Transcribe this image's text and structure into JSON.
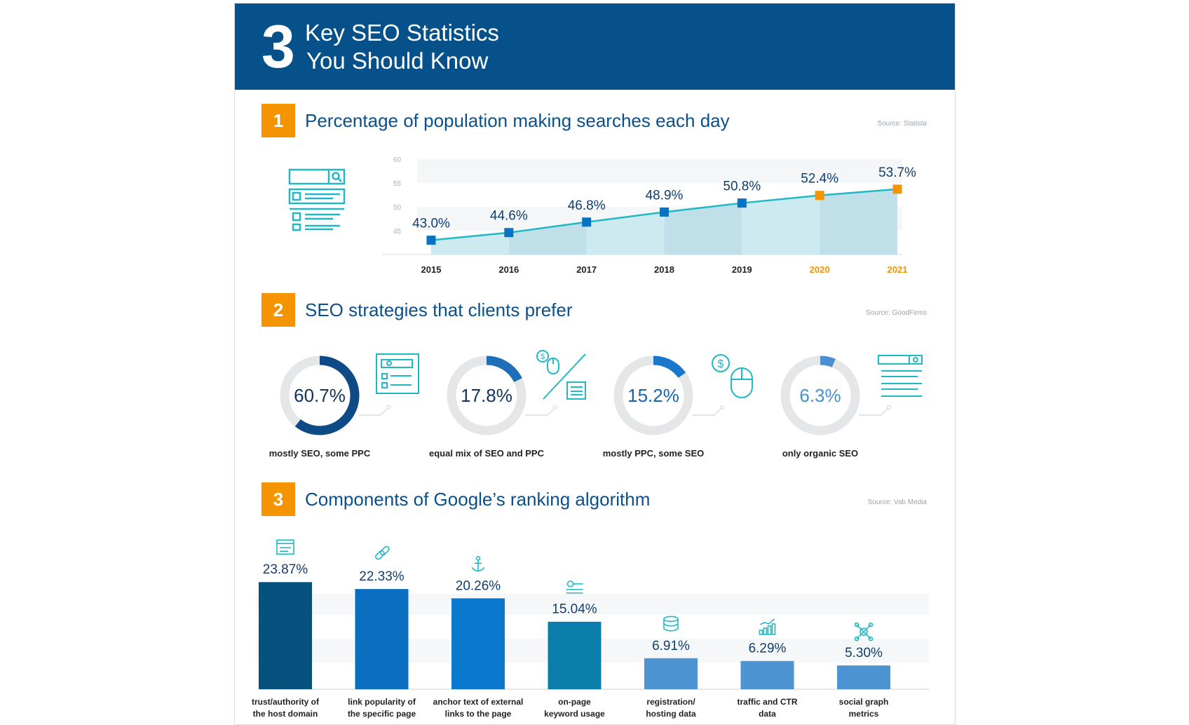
{
  "banner": {
    "number": "3",
    "title_line1": "Key SEO Statistics",
    "title_line2": "You Should Know"
  },
  "sections": [
    {
      "num": "1",
      "title": "Percentage of population making searches each day",
      "source": "Source: Statista"
    },
    {
      "num": "2",
      "title": "SEO strategies that clients prefer",
      "source": "Source: GoodFirms"
    },
    {
      "num": "3",
      "title": "Components of Google’s ranking algorithm",
      "source": "Source: Vab Media"
    }
  ],
  "colors": {
    "navy": "#07518b",
    "orange": "#f39400",
    "teal": "#1fb8c4",
    "area": "#c8e7ef",
    "blue": "#0a72c3"
  },
  "chart_data": [
    {
      "type": "line",
      "title": "Percentage of population making searches each day",
      "x": [
        "2015",
        "2016",
        "2017",
        "2018",
        "2019",
        "2020",
        "2021"
      ],
      "values": [
        43.0,
        44.6,
        46.8,
        48.9,
        50.8,
        52.4,
        53.7
      ],
      "data_labels": [
        "43.0%",
        "44.6%",
        "46.8%",
        "48.9%",
        "50.8%",
        "52.4%",
        "53.7%"
      ],
      "y_ticks": [
        "60",
        "55",
        "50",
        "45"
      ],
      "ylim": [
        40,
        60
      ],
      "highlighted_x": [
        "2020",
        "2021"
      ]
    },
    {
      "type": "pie",
      "title": "SEO strategies that clients prefer",
      "categories": [
        "mostly SEO, some PPC",
        "equal mix of SEO and PPC",
        "mostly PPC, some SEO",
        "only organic SEO"
      ],
      "values": [
        60.7,
        17.8,
        15.2,
        6.3
      ],
      "data_labels": [
        "60.7%",
        "17.8%",
        "15.2%",
        "6.3%"
      ],
      "icons": [
        "search-results-page-icon",
        "paid-click-and-page-icon",
        "paid-click-icon",
        "organic-results-page-icon"
      ]
    },
    {
      "type": "bar",
      "title": "Components of Google’s ranking algorithm",
      "categories": [
        [
          "trust/authority of",
          "the host domain"
        ],
        [
          "link popularity of",
          "the specific page"
        ],
        [
          "anchor text of external",
          "links to the page"
        ],
        [
          "on-page",
          "keyword usage"
        ],
        [
          "registration/",
          "hosting data"
        ],
        [
          "traffic and CTR",
          "data"
        ],
        [
          "social graph",
          "metrics"
        ]
      ],
      "values": [
        23.87,
        22.33,
        20.26,
        15.04,
        6.91,
        6.29,
        5.3
      ],
      "data_labels": [
        "23.87%",
        "22.33%",
        "20.26%",
        "15.04%",
        "6.91%",
        "6.29%",
        "5.30%"
      ],
      "bar_colors": [
        "#07517f",
        "#0a6fc0",
        "#0a78cc",
        "#0b7dab",
        "#4d94d2",
        "#4d94d2",
        "#4d94d2"
      ],
      "icons": [
        "www-browser-icon",
        "chain-link-icon",
        "anchor-icon",
        "key-icon",
        "database-icon",
        "growth-chart-icon",
        "network-icon"
      ]
    }
  ]
}
